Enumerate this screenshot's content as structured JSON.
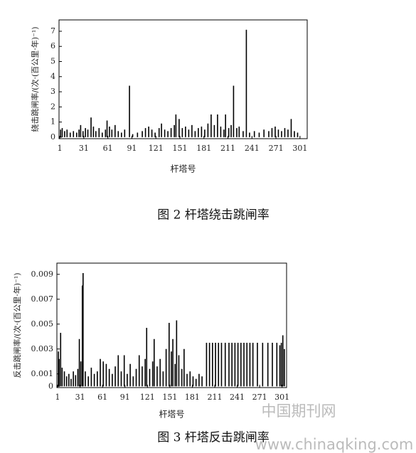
{
  "chart_data": [
    {
      "type": "bar",
      "ylabel": "绕击跳闸率/(次·(百公里·年)⁻¹)",
      "xlabel": "杆塔号",
      "caption": "图 2 杆塔绕击跳闸率",
      "color": "#000000",
      "x": [
        2,
        4,
        7,
        10,
        14,
        18,
        22,
        25,
        27,
        30,
        33,
        36,
        40,
        43,
        46,
        50,
        54,
        58,
        60,
        63,
        66,
        70,
        74,
        78,
        82,
        88,
        92,
        98,
        104,
        108,
        112,
        116,
        120,
        125,
        128,
        132,
        136,
        140,
        144,
        146,
        150,
        154,
        158,
        162,
        166,
        170,
        174,
        178,
        182,
        186,
        190,
        194,
        198,
        202,
        206,
        208,
        212,
        215,
        218,
        222,
        225,
        230,
        234,
        238,
        244,
        250,
        256,
        262,
        266,
        270,
        274,
        278,
        282,
        286,
        290,
        294,
        298
      ],
      "values": [
        0.5,
        0.6,
        0.4,
        0.5,
        0.3,
        0.4,
        0.3,
        0.5,
        0.8,
        0.4,
        0.6,
        0.5,
        1.3,
        0.7,
        0.4,
        0.6,
        0.3,
        0.5,
        1.1,
        0.7,
        0.5,
        0.8,
        0.4,
        0.3,
        0.5,
        3.4,
        0.2,
        0.3,
        0.4,
        0.6,
        0.7,
        0.5,
        0.3,
        0.6,
        0.9,
        0.5,
        0.4,
        0.6,
        0.8,
        1.5,
        1.2,
        0.6,
        0.7,
        0.5,
        0.8,
        0.4,
        0.6,
        0.7,
        0.5,
        0.9,
        1.5,
        0.8,
        1.5,
        0.7,
        0.5,
        1.5,
        0.6,
        0.8,
        3.4,
        0.6,
        0.7,
        0.4,
        7.1,
        0.3,
        0.4,
        0.3,
        0.5,
        0.4,
        0.6,
        0.7,
        0.5,
        0.4,
        0.6,
        0.5,
        1.2,
        0.4,
        0.3
      ],
      "xlim": [
        0,
        310
      ],
      "ylim": [
        -0.1,
        7.75
      ],
      "xticks": [
        1,
        31,
        61,
        91,
        121,
        151,
        181,
        211,
        241,
        271,
        301
      ],
      "yticks": [
        0,
        1,
        2,
        3,
        4,
        5,
        6,
        7
      ]
    },
    {
      "type": "bar",
      "ylabel": "反击跳闸率/(次·(百公里·年)⁻¹)",
      "xlabel": "杆塔号",
      "caption": "图 3 杆塔反击跳闸率",
      "color": "#000000",
      "x": [
        2,
        3,
        5,
        7,
        10,
        13,
        16,
        19,
        22,
        25,
        28,
        30,
        32,
        34,
        35,
        38,
        42,
        46,
        50,
        54,
        58,
        62,
        66,
        70,
        74,
        78,
        82,
        86,
        90,
        94,
        98,
        102,
        106,
        110,
        114,
        118,
        120,
        124,
        128,
        130,
        134,
        138,
        142,
        146,
        150,
        153,
        155,
        158,
        160,
        163,
        167,
        170,
        174,
        178,
        182,
        186,
        190,
        194,
        200,
        204,
        208,
        212,
        216,
        220,
        225,
        230,
        234,
        238,
        242,
        246,
        250,
        254,
        258,
        262,
        268,
        275,
        282,
        288,
        294,
        298,
        300,
        302,
        304
      ],
      "values": [
        0.0028,
        0.0022,
        0.0043,
        0.0015,
        0.0012,
        0.0008,
        0.001,
        0.0006,
        0.0012,
        0.0009,
        0.0014,
        0.0038,
        0.002,
        0.0081,
        0.0091,
        0.0012,
        0.0008,
        0.0015,
        0.001,
        0.0012,
        0.0022,
        0.002,
        0.0018,
        0.0014,
        0.001,
        0.0016,
        0.0025,
        0.0012,
        0.0025,
        0.001,
        0.0018,
        0.0008,
        0.0014,
        0.0025,
        0.0016,
        0.0022,
        0.0047,
        0.0014,
        0.002,
        0.0038,
        0.0016,
        0.0022,
        0.0012,
        0.003,
        0.0051,
        0.0028,
        0.0038,
        0.0018,
        0.0053,
        0.0025,
        0.0014,
        0.003,
        0.001,
        0.0012,
        0.0008,
        0.0006,
        0.001,
        0.0008,
        0.0035,
        0.0035,
        0.0035,
        0.0035,
        0.0035,
        0.0035,
        0.0035,
        0.0035,
        0.0035,
        0.0035,
        0.0035,
        0.0035,
        0.0035,
        0.0035,
        0.0035,
        0.0035,
        0.0035,
        0.0035,
        0.0035,
        0.0035,
        0.0035,
        0.0033,
        0.0035,
        0.0041,
        0.003
      ],
      "xlim": [
        0,
        307
      ],
      "ylim": [
        -0.0001,
        0.0099
      ],
      "xticks": [
        1,
        31,
        61,
        91,
        121,
        151,
        181,
        211,
        241,
        271,
        301
      ],
      "yticks": [
        0,
        0.001,
        0.003,
        0.005,
        0.007,
        0.009
      ]
    }
  ],
  "watermark": {
    "site": "中国期刊网",
    "url": "www.chinaqking.com"
  }
}
